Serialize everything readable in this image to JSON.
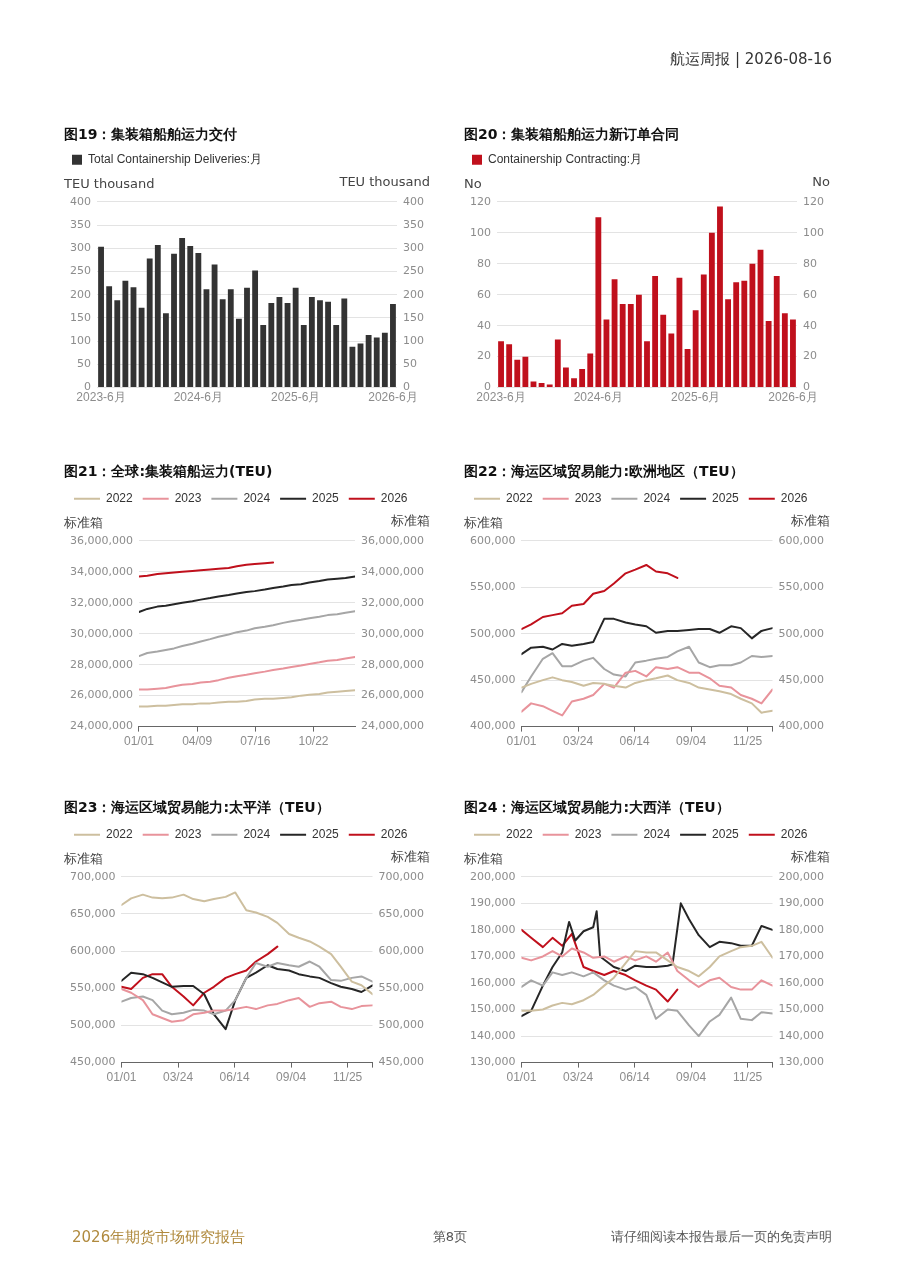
{
  "chart_data": [
    {
      "type": "bar",
      "title": "图19：集装箱船舶运力交付",
      "ylabel": "TEU thousand",
      "y2label": "TEU thousand",
      "legend": "top left",
      "grid": "y",
      "annotations": [
        "航运周报 | 2026-08-16"
      ],
      "categories": [
        "2023-6月",
        null,
        null,
        null,
        null,
        null,
        null,
        null,
        null,
        null,
        null,
        null,
        "2024-6月",
        null,
        null,
        null,
        null,
        null,
        null,
        null,
        null,
        null,
        null,
        null,
        "2025-6月",
        null,
        null,
        null,
        null,
        null,
        null,
        null,
        null,
        null,
        null,
        null,
        "2026-6月"
      ],
      "series": [
        {
          "name": "Total Containership Deliveries:月",
          "color": "#333333",
          "values": [
            303,
            218,
            188,
            230,
            216,
            172,
            278,
            307,
            160,
            288,
            322,
            305,
            290,
            212,
            265,
            190,
            212,
            148,
            215,
            252,
            135,
            182,
            195,
            182,
            215,
            135,
            195,
            188,
            185,
            135,
            192,
            88,
            95,
            113,
            108,
            118,
            180
          ]
        }
      ],
      "ylim": [
        0,
        400
      ],
      "yticks": [
        0,
        50,
        100,
        150,
        200,
        250,
        300,
        350,
        400
      ],
      "y2lim": [
        0,
        400
      ],
      "y2ticks": [
        0,
        50,
        100,
        150,
        200,
        250,
        300,
        350,
        400
      ]
    },
    {
      "type": "bar",
      "title": "图20：集装箱船舶运力新订单合同",
      "ylabel": "No",
      "y2label": "No",
      "legend": "top left",
      "grid": "y",
      "categories": [
        "2023-6月",
        null,
        null,
        null,
        null,
        null,
        null,
        null,
        null,
        null,
        null,
        null,
        "2024-6月",
        null,
        null,
        null,
        null,
        null,
        null,
        null,
        null,
        null,
        null,
        null,
        "2025-6月",
        null,
        null,
        null,
        null,
        null,
        null,
        null,
        null,
        null,
        null,
        null,
        "2026-6月"
      ],
      "series": [
        {
          "name": "Containership Contracting:月",
          "color": "#c0101c",
          "values": [
            30,
            28,
            18,
            20,
            4,
            3,
            2,
            31,
            13,
            6,
            12,
            22,
            110,
            44,
            70,
            54,
            54,
            60,
            30,
            72,
            47,
            35,
            71,
            25,
            50,
            73,
            100,
            117,
            57,
            68,
            69,
            80,
            89,
            43,
            72,
            48,
            44
          ]
        }
      ],
      "ylim": [
        0,
        120
      ],
      "yticks": [
        0,
        20,
        40,
        60,
        80,
        100,
        120
      ],
      "y2lim": [
        0,
        120
      ],
      "y2ticks": [
        0,
        20,
        40,
        60,
        80,
        100,
        120
      ]
    },
    {
      "type": "line",
      "title": "图21：全球:集装箱船运力(TEU)",
      "ylabel": "标准箱",
      "y2label": "标准箱",
      "legend": "top left",
      "grid": "y",
      "marker": "none",
      "line_style": "solid",
      "x": [
        "--01-01",
        "--01-15",
        "--02-01",
        "--02-15",
        "--03-01",
        "--03-15",
        "--04-01",
        "--04-15",
        "--05-01",
        "--05-15",
        "--06-01",
        "--06-15",
        "--07-01",
        "--07-15",
        "--08-01",
        "--08-15",
        "--09-01",
        "--09-15",
        "--10-01",
        "--10-15",
        "--11-01",
        "--11-15",
        "--12-01",
        "--12-15",
        "--12-31"
      ],
      "series": [
        {
          "name": "2022",
          "color": "#cdbf9f",
          "values": [
            25300000,
            25300000,
            25350000,
            25350000,
            25400000,
            25450000,
            25450000,
            25500000,
            25500000,
            25550000,
            25600000,
            25600000,
            25650000,
            25750000,
            25800000,
            25800000,
            25850000,
            25900000,
            26000000,
            26050000,
            26100000,
            26200000,
            26250000,
            26300000,
            26350000
          ]
        },
        {
          "name": "2023",
          "color": "#e8939b",
          "values": [
            26400000,
            26400000,
            26450000,
            26500000,
            26600000,
            26700000,
            26750000,
            26850000,
            26900000,
            27000000,
            27150000,
            27250000,
            27350000,
            27450000,
            27550000,
            27650000,
            27750000,
            27850000,
            27950000,
            28050000,
            28150000,
            28250000,
            28300000,
            28400000,
            28500000
          ]
        },
        {
          "name": "2024",
          "color": "#a6a6a6",
          "values": [
            28550000,
            28750000,
            28850000,
            28950000,
            29050000,
            29200000,
            29350000,
            29500000,
            29650000,
            29800000,
            29950000,
            30100000,
            30200000,
            30350000,
            30450000,
            30550000,
            30700000,
            30800000,
            30900000,
            31000000,
            31100000,
            31200000,
            31250000,
            31350000,
            31450000
          ]
        },
        {
          "name": "2025",
          "color": "#262626",
          "values": [
            31400000,
            31600000,
            31750000,
            31800000,
            31900000,
            32000000,
            32100000,
            32200000,
            32300000,
            32400000,
            32500000,
            32600000,
            32700000,
            32750000,
            32850000,
            32950000,
            33050000,
            33150000,
            33200000,
            33300000,
            33400000,
            33500000,
            33550000,
            33600000,
            33700000
          ]
        },
        {
          "name": "2026",
          "color": "#c0101c",
          "values": [
            33700000,
            33750000,
            33850000,
            33900000,
            33950000,
            34000000,
            34050000,
            34100000,
            34150000,
            34200000,
            34250000,
            34350000,
            34450000,
            34500000,
            34550000,
            34600000,
            null,
            null,
            null,
            null,
            null,
            null,
            null,
            null,
            null
          ]
        }
      ],
      "xlim": [
        "--01-01",
        "--12-31"
      ],
      "xticks": [
        {
          "value": "--01-01",
          "label": "01/01"
        },
        {
          "value": "--04-09",
          "label": "04/09"
        },
        {
          "value": "--07-16",
          "label": "07/16"
        },
        {
          "value": "--10-22",
          "label": "10/22"
        }
      ],
      "ylim": [
        24000000,
        36000000
      ],
      "yticks": [
        {
          "value": 24000000,
          "label": "24,000,000"
        },
        {
          "value": 26000000,
          "label": "26,000,000"
        },
        {
          "value": 28000000,
          "label": "28,000,000"
        },
        {
          "value": 30000000,
          "label": "30,000,000"
        },
        {
          "value": 32000000,
          "label": "32,000,000"
        },
        {
          "value": 34000000,
          "label": "34,000,000"
        },
        {
          "value": 36000000,
          "label": "36,000,000"
        }
      ],
      "y2lim": [
        24000000,
        36000000
      ],
      "y2ticks": [
        {
          "value": 24000000,
          "label": "24,000,000"
        },
        {
          "value": 26000000,
          "label": "26,000,000"
        },
        {
          "value": 28000000,
          "label": "28,000,000"
        },
        {
          "value": 30000000,
          "label": "30,000,000"
        },
        {
          "value": 32000000,
          "label": "32,000,000"
        },
        {
          "value": 34000000,
          "label": "34,000,000"
        },
        {
          "value": 36000000,
          "label": "36,000,000"
        }
      ]
    },
    {
      "type": "line",
      "title": "图22：海运区域贸易能力:欧洲地区（TEU）",
      "ylabel": "标准箱",
      "y2label": "标准箱",
      "legend": "top left",
      "grid": "y",
      "marker": "none",
      "line_style": "solid",
      "x": [
        "--01-01",
        "--01-15",
        "--02-01",
        "--02-15",
        "--03-01",
        "--03-15",
        "--04-01",
        "--04-15",
        "--05-01",
        "--05-15",
        "--06-01",
        "--06-15",
        "--07-01",
        "--07-15",
        "--08-01",
        "--08-15",
        "--09-01",
        "--09-15",
        "--10-01",
        "--10-15",
        "--11-01",
        "--11-15",
        "--12-01",
        "--12-15",
        "--12-31"
      ],
      "series": [
        {
          "name": "2022",
          "color": "#cdbf9f",
          "values": [
            442000,
            446000,
            450000,
            453000,
            450000,
            448000,
            444000,
            447000,
            446000,
            444000,
            442000,
            447000,
            450000,
            452000,
            455000,
            450000,
            447000,
            442000,
            440000,
            438000,
            435000,
            430000,
            425000,
            415000,
            417000
          ]
        },
        {
          "name": "2023",
          "color": "#e8939b",
          "values": [
            416000,
            425000,
            422000,
            417000,
            412000,
            427000,
            430000,
            434000,
            446000,
            442000,
            458000,
            460000,
            454000,
            464000,
            462000,
            464000,
            458000,
            458000,
            452000,
            444000,
            442000,
            434000,
            430000,
            425000,
            440000
          ]
        },
        {
          "name": "2024",
          "color": "#a6a6a6",
          "values": [
            437000,
            454000,
            473000,
            479000,
            465000,
            465000,
            471000,
            474000,
            462000,
            456000,
            454000,
            469000,
            471000,
            473000,
            475000,
            481000,
            486000,
            469000,
            464000,
            466000,
            466000,
            469000,
            476000,
            475000,
            476000
          ]
        },
        {
          "name": "2025",
          "color": "#262626",
          "values": [
            478000,
            485000,
            486000,
            483000,
            489000,
            487000,
            489000,
            491000,
            516000,
            516000,
            512000,
            510000,
            508000,
            501000,
            503000,
            503000,
            504000,
            505000,
            505000,
            501000,
            508000,
            506000,
            495000,
            503000,
            506000
          ]
        },
        {
          "name": "2026",
          "color": "#c0101c",
          "values": [
            505000,
            510000,
            518000,
            520000,
            522000,
            530000,
            532000,
            543000,
            546000,
            554000,
            565000,
            569000,
            574000,
            567000,
            565000,
            560000,
            null,
            null,
            null,
            null,
            null,
            null,
            null,
            null,
            null
          ]
        }
      ],
      "xlim": [
        "--01-01",
        "--12-31"
      ],
      "xticks": [
        {
          "value": "--01-01",
          "label": "01/01"
        },
        {
          "value": "--03-24",
          "label": "03/24"
        },
        {
          "value": "--06-14",
          "label": "06/14"
        },
        {
          "value": "--09-04",
          "label": "09/04"
        },
        {
          "value": "--11-25",
          "label": "11/25"
        },
        {
          "value": "--12-31",
          "label": null
        }
      ],
      "ylim": [
        400000,
        600000
      ],
      "yticks": [
        {
          "value": 400000,
          "label": "400,000"
        },
        {
          "value": 450000,
          "label": "450,000"
        },
        {
          "value": 500000,
          "label": "500,000"
        },
        {
          "value": 550000,
          "label": "550,000"
        },
        {
          "value": 600000,
          "label": "600,000"
        }
      ],
      "y2lim": [
        400000,
        600000
      ],
      "y2ticks": [
        {
          "value": 400000,
          "label": "400,000"
        },
        {
          "value": 450000,
          "label": "450,000"
        },
        {
          "value": 500000,
          "label": "500,000"
        },
        {
          "value": 550000,
          "label": "550,000"
        },
        {
          "value": 600000,
          "label": "600,000"
        }
      ]
    },
    {
      "type": "line",
      "title": "图23：海运区域贸易能力:太平洋（TEU）",
      "ylabel": "标准箱",
      "y2label": "标准箱",
      "legend": "top left",
      "grid": "y",
      "marker": "none",
      "line_style": "solid",
      "x": [
        "--01-01",
        "--01-15",
        "--02-01",
        "--02-15",
        "--03-01",
        "--03-15",
        "--04-01",
        "--04-15",
        "--05-01",
        "--05-15",
        "--06-01",
        "--06-15",
        "--07-01",
        "--07-15",
        "--08-01",
        "--08-15",
        "--09-01",
        "--09-15",
        "--10-01",
        "--10-15",
        "--11-01",
        "--11-15",
        "--12-01",
        "--12-15",
        "--12-31"
      ],
      "series": [
        {
          "name": "2022",
          "color": "#cdbf9f",
          "values": [
            662000,
            671000,
            676000,
            672000,
            671000,
            672000,
            676000,
            670000,
            667000,
            670000,
            673000,
            679000,
            655000,
            652000,
            646000,
            638000,
            623000,
            618000,
            613000,
            606000,
            596000,
            579000,
            559000,
            554000,
            542000
          ]
        },
        {
          "name": "2023",
          "color": "#e8939b",
          "values": [
            549000,
            544000,
            534000,
            515000,
            510000,
            505000,
            507000,
            515000,
            517000,
            520000,
            520000,
            522000,
            525000,
            522000,
            527000,
            529000,
            534000,
            537000,
            525000,
            530000,
            532000,
            525000,
            522000,
            526000,
            527000
          ]
        },
        {
          "name": "2024",
          "color": "#a6a6a6",
          "values": [
            532000,
            537000,
            539000,
            534000,
            520000,
            515000,
            517000,
            521000,
            520000,
            515000,
            520000,
            534000,
            564000,
            584000,
            579000,
            584000,
            581000,
            579000,
            586000,
            579000,
            561000,
            560000,
            564000,
            566000,
            559000
          ]
        },
        {
          "name": "2025",
          "color": "#262626",
          "values": [
            560000,
            571000,
            569000,
            564000,
            558000,
            552000,
            553000,
            553000,
            542000,
            515000,
            495000,
            534000,
            564000,
            571000,
            581000,
            576000,
            574000,
            569000,
            566000,
            564000,
            557000,
            552000,
            549000,
            545000,
            554000
          ]
        },
        {
          "name": "2026",
          "color": "#c0101c",
          "values": [
            552000,
            549000,
            564000,
            569000,
            569000,
            552000,
            539000,
            527000,
            544000,
            552000,
            564000,
            569000,
            574000,
            586000,
            596000,
            606000,
            null,
            null,
            null,
            null,
            null,
            null,
            null,
            null,
            null
          ]
        }
      ],
      "xlim": [
        "--01-01",
        "--12-31"
      ],
      "xticks": [
        {
          "value": "--01-01",
          "label": "01/01"
        },
        {
          "value": "--03-24",
          "label": "03/24"
        },
        {
          "value": "--06-14",
          "label": "06/14"
        },
        {
          "value": "--09-04",
          "label": "09/04"
        },
        {
          "value": "--11-25",
          "label": "11/25"
        },
        {
          "value": "--12-31",
          "label": null
        }
      ],
      "ylim": [
        450000,
        700000
      ],
      "yticks": [
        {
          "value": 450000,
          "label": "450,000"
        },
        {
          "value": 500000,
          "label": "500,000"
        },
        {
          "value": 550000,
          "label": "550,000"
        },
        {
          "value": 600000,
          "label": "600,000"
        },
        {
          "value": 650000,
          "label": "650,000"
        },
        {
          "value": 700000,
          "label": "700,000"
        }
      ],
      "y2lim": [
        450000,
        700000
      ],
      "y2ticks": [
        {
          "value": 450000,
          "label": "450,000"
        },
        {
          "value": 500000,
          "label": "500,000"
        },
        {
          "value": 550000,
          "label": "550,000"
        },
        {
          "value": 600000,
          "label": "600,000"
        },
        {
          "value": 650000,
          "label": "650,000"
        },
        {
          "value": 700000,
          "label": "700,000"
        }
      ]
    },
    {
      "type": "line",
      "title": "图24：海运区域贸易能力:大西洋（TEU）",
      "ylabel": "标准箱",
      "y2label": "标准箱",
      "legend": "top left",
      "grid": "y",
      "marker": "none",
      "line_style": "solid",
      "annotations": [
        "2026年期货市场研究报告",
        "第8页",
        "请仔细阅读本报告最后一页的免责声明"
      ],
      "x": [
        "--01-01",
        "--01-15",
        "--02-01",
        "--02-15",
        "--03-01",
        "--03-15",
        "--04-01",
        "--04-15",
        "--05-01",
        "--05-15",
        "--06-01",
        "--06-15",
        "--07-01",
        "--07-15",
        "--08-01",
        "--08-15",
        "--09-01",
        "--09-15",
        "--10-01",
        "--10-15",
        "--11-01",
        "--11-15",
        "--12-01",
        "--12-15",
        "--12-31"
      ],
      "series": [
        {
          "name": "2022",
          "color": "#cdbf9f",
          "values": [
            149500,
            149500,
            150000,
            151500,
            152500,
            152000,
            153500,
            155500,
            159000,
            162000,
            167500,
            172000,
            171500,
            171500,
            168500,
            166000,
            164500,
            162500,
            166000,
            170000,
            172000,
            173500,
            174000,
            175500,
            169500
          ]
        },
        {
          "name": "2023",
          "color": "#e8939b",
          "values": [
            169500,
            168500,
            170000,
            172000,
            170000,
            173000,
            171500,
            169500,
            170000,
            168000,
            170000,
            168500,
            170000,
            168000,
            171500,
            164500,
            161000,
            158500,
            161000,
            162000,
            158500,
            157500,
            157500,
            161000,
            159000
          ]
        },
        {
          "name": "2024",
          "color": "#a6a6a6",
          "values": [
            158500,
            161000,
            159000,
            164000,
            163000,
            164000,
            162500,
            164000,
            161000,
            159000,
            157500,
            158500,
            155500,
            146500,
            150000,
            149500,
            144000,
            140000,
            145500,
            148000,
            154500,
            146500,
            146000,
            149000,
            148500
          ]
        },
        {
          "name": "2025",
          "color": "#262626",
          "x": [
            "--01-01",
            "--01-15",
            "--02-01",
            "--02-15",
            "--03-01",
            "--03-11",
            "--03-20",
            "--04-01",
            "--04-15",
            "--04-20",
            "--04-25",
            "--05-15",
            "--06-01",
            "--06-15",
            "--07-01",
            "--07-15",
            "--08-01",
            "--08-08",
            "--08-20",
            "--09-01",
            "--09-15",
            "--10-01",
            "--10-15",
            "--11-01",
            "--11-15",
            "--12-01",
            "--12-15",
            "--12-31"
          ],
          "values": [
            147500,
            149500,
            159000,
            166000,
            171500,
            183000,
            176000,
            179500,
            181000,
            187000,
            170000,
            166000,
            164500,
            166500,
            166000,
            166000,
            166500,
            167000,
            190000,
            184000,
            178000,
            173500,
            175500,
            175000,
            174000,
            174000,
            181500,
            180000
          ]
        },
        {
          "name": "2026",
          "color": "#c0101c",
          "values": [
            180000,
            177000,
            173500,
            177000,
            174000,
            178500,
            166000,
            164500,
            163000,
            164500,
            163000,
            161000,
            159000,
            157500,
            153000,
            157500,
            null,
            null,
            null,
            null,
            null,
            null,
            null,
            null,
            null
          ]
        }
      ],
      "xlim": [
        "--01-01",
        "--12-31"
      ],
      "xticks": [
        {
          "value": "--01-01",
          "label": "01/01"
        },
        {
          "value": "--03-24",
          "label": "03/24"
        },
        {
          "value": "--06-14",
          "label": "06/14"
        },
        {
          "value": "--09-04",
          "label": "09/04"
        },
        {
          "value": "--11-25",
          "label": "11/25"
        },
        {
          "value": "--12-31",
          "label": null
        }
      ],
      "ylim": [
        130000,
        200000
      ],
      "yticks": [
        {
          "value": 130000,
          "label": "130,000"
        },
        {
          "value": 140000,
          "label": "140,000"
        },
        {
          "value": 150000,
          "label": "150,000"
        },
        {
          "value": 160000,
          "label": "160,000"
        },
        {
          "value": 170000,
          "label": "170,000"
        },
        {
          "value": 180000,
          "label": "180,000"
        },
        {
          "value": 190000,
          "label": "190,000"
        },
        {
          "value": 200000,
          "label": "200,000"
        }
      ],
      "y2lim": [
        130000,
        200000
      ],
      "y2ticks": [
        {
          "value": 130000,
          "label": "130,000"
        },
        {
          "value": 140000,
          "label": "140,000"
        },
        {
          "value": 150000,
          "label": "150,000"
        },
        {
          "value": 160000,
          "label": "160,000"
        },
        {
          "value": 170000,
          "label": "170,000"
        },
        {
          "value": 180000,
          "label": "180,000"
        },
        {
          "value": 190000,
          "label": "190,000"
        },
        {
          "value": 200000,
          "label": "200,000"
        }
      ]
    }
  ]
}
